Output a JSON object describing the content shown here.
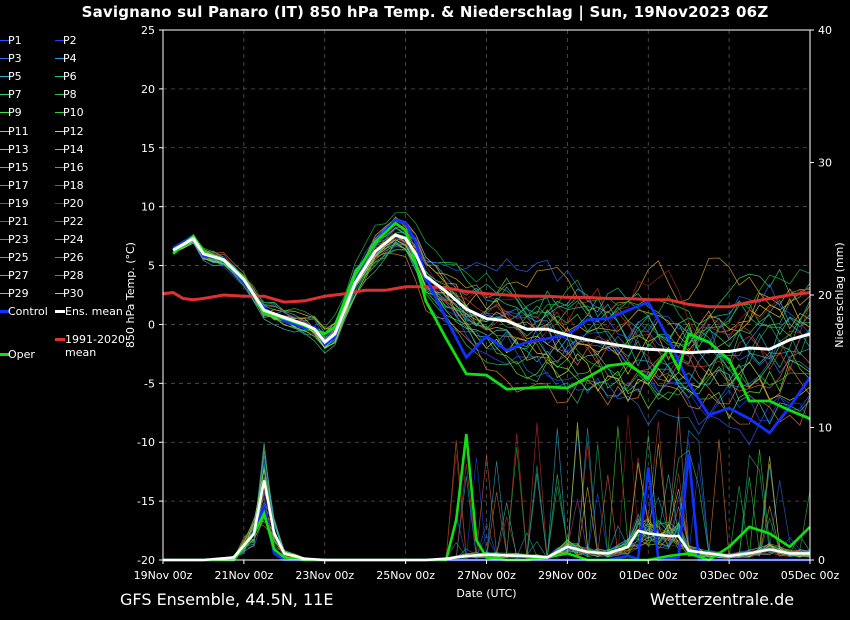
{
  "header": {
    "title": "Savignano sul Panaro  (IT)  850 hPa Temp. & Niederschlag | Sun, 19Nov2023 06Z"
  },
  "footer": {
    "left": "GFS Ensemble, 44.5N, 11E",
    "right": "Wetterzentrale.de"
  },
  "legend": {
    "members": [
      {
        "label": "P1",
        "color": "#3050ff"
      },
      {
        "label": "P2",
        "color": "#2040ff"
      },
      {
        "label": "P3",
        "color": "#3070e0"
      },
      {
        "label": "P4",
        "color": "#20a0e0"
      },
      {
        "label": "P5",
        "color": "#30b0d0"
      },
      {
        "label": "P6",
        "color": "#20c090"
      },
      {
        "label": "P7",
        "color": "#30d070"
      },
      {
        "label": "P8",
        "color": "#30c050"
      },
      {
        "label": "P9",
        "color": "#40e040"
      },
      {
        "label": "P10",
        "color": "#30d030"
      },
      {
        "label": "P11",
        "color": "#d0c030"
      },
      {
        "label": "P12",
        "color": "#e0c040"
      },
      {
        "label": "P13",
        "color": "#e0b030"
      },
      {
        "label": "P14",
        "color": "#d0a030"
      },
      {
        "label": "P15",
        "color": "#e08040"
      },
      {
        "label": "P16",
        "color": "#d07030"
      },
      {
        "label": "P17",
        "color": "#e06040"
      },
      {
        "label": "P18",
        "color": "#c04030"
      },
      {
        "label": "P19",
        "color": "#d03030"
      },
      {
        "label": "P20",
        "color": "#a02020"
      },
      {
        "label": "P21",
        "color": "#3060f0"
      },
      {
        "label": "P22",
        "color": "#2070d0"
      },
      {
        "label": "P23",
        "color": "#30a0c0"
      },
      {
        "label": "P24",
        "color": "#40c0c0"
      },
      {
        "label": "P25",
        "color": "#30c080"
      },
      {
        "label": "P26",
        "color": "#20b060"
      },
      {
        "label": "P27",
        "color": "#30d060"
      },
      {
        "label": "P28",
        "color": "#20b040"
      },
      {
        "label": "P29",
        "color": "#60e040"
      },
      {
        "label": "P30",
        "color": "#d0d040"
      }
    ],
    "control_label": "Control",
    "ens_mean_label": "Ens. mean",
    "clim_label": "1991-2020 mean",
    "oper_label": "Oper"
  },
  "chart_data": {
    "type": "line",
    "title": "Savignano sul Panaro  (IT)  850 hPa Temp. & Niederschlag | Sun, 19Nov2023 06Z",
    "xlabel": "Date (UTC)",
    "ylabel": "850 hPa Temp. (°C)",
    "y2label": "Niederschlag (mm)",
    "ylim": [
      -20,
      25
    ],
    "y2lim": [
      0,
      40
    ],
    "yticks": [
      -20,
      -15,
      -10,
      -5,
      0,
      5,
      10,
      15,
      20,
      25
    ],
    "y2ticks": [
      0,
      10,
      20,
      30,
      40
    ],
    "xlim_days": [
      0,
      16
    ],
    "xticks": [
      {
        "label": "19Nov 00z",
        "day": 0
      },
      {
        "label": "21Nov 00z",
        "day": 2
      },
      {
        "label": "23Nov 00z",
        "day": 4
      },
      {
        "label": "25Nov 00z",
        "day": 6
      },
      {
        "label": "27Nov 00z",
        "day": 8
      },
      {
        "label": "29Nov 00z",
        "day": 10
      },
      {
        "label": "01Dec 00z",
        "day": 12
      },
      {
        "label": "03Dec 00z",
        "day": 14
      },
      {
        "label": "05Dec 00z",
        "day": 16
      }
    ],
    "grid": true,
    "legend_position": "left",
    "member_count": 30,
    "member_spread": [
      {
        "day": 0,
        "sd": 0.4
      },
      {
        "day": 2,
        "sd": 0.8
      },
      {
        "day": 4,
        "sd": 1.0
      },
      {
        "day": 6,
        "sd": 1.2
      },
      {
        "day": 7,
        "sd": 1.8
      },
      {
        "day": 8,
        "sd": 2.6
      },
      {
        "day": 10,
        "sd": 3.2
      },
      {
        "day": 12,
        "sd": 3.6
      },
      {
        "day": 16,
        "sd": 4.0
      }
    ],
    "ens_mean": [
      {
        "day": 0.25,
        "t": 6.3
      },
      {
        "day": 0.75,
        "t": 7.3
      },
      {
        "day": 1.0,
        "t": 6.0
      },
      {
        "day": 1.5,
        "t": 5.5
      },
      {
        "day": 2.0,
        "t": 3.8
      },
      {
        "day": 2.5,
        "t": 1.2
      },
      {
        "day": 3.0,
        "t": 0.6
      },
      {
        "day": 3.5,
        "t": 0.0
      },
      {
        "day": 3.75,
        "t": -0.4
      },
      {
        "day": 4.0,
        "t": -1.5
      },
      {
        "day": 4.25,
        "t": -0.8
      },
      {
        "day": 4.75,
        "t": 3.5
      },
      {
        "day": 5.25,
        "t": 6.2
      },
      {
        "day": 5.75,
        "t": 7.6
      },
      {
        "day": 6.0,
        "t": 7.3
      },
      {
        "day": 6.25,
        "t": 6.0
      },
      {
        "day": 6.5,
        "t": 4.1
      },
      {
        "day": 7.0,
        "t": 2.8
      },
      {
        "day": 7.5,
        "t": 1.3
      },
      {
        "day": 8.0,
        "t": 0.5
      },
      {
        "day": 8.5,
        "t": 0.3
      },
      {
        "day": 9.0,
        "t": -0.4
      },
      {
        "day": 9.5,
        "t": -0.4
      },
      {
        "day": 10.0,
        "t": -0.9
      },
      {
        "day": 10.5,
        "t": -1.3
      },
      {
        "day": 11.0,
        "t": -1.6
      },
      {
        "day": 11.5,
        "t": -1.9
      },
      {
        "day": 12.0,
        "t": -2.1
      },
      {
        "day": 12.5,
        "t": -2.2
      },
      {
        "day": 13.0,
        "t": -2.4
      },
      {
        "day": 13.5,
        "t": -2.3
      },
      {
        "day": 14.0,
        "t": -2.3
      },
      {
        "day": 14.5,
        "t": -2.0
      },
      {
        "day": 15.0,
        "t": -2.1
      },
      {
        "day": 15.5,
        "t": -1.3
      },
      {
        "day": 16.0,
        "t": -0.8
      }
    ],
    "control": [
      {
        "day": 0.25,
        "t": 6.5
      },
      {
        "day": 0.75,
        "t": 7.5
      },
      {
        "day": 1.0,
        "t": 5.8
      },
      {
        "day": 1.5,
        "t": 5.6
      },
      {
        "day": 2.0,
        "t": 3.6
      },
      {
        "day": 2.5,
        "t": 1.4
      },
      {
        "day": 3.0,
        "t": 0.3
      },
      {
        "day": 3.5,
        "t": -0.3
      },
      {
        "day": 3.75,
        "t": -0.2
      },
      {
        "day": 4.0,
        "t": -1.7
      },
      {
        "day": 4.25,
        "t": -1.0
      },
      {
        "day": 4.75,
        "t": 4.0
      },
      {
        "day": 5.25,
        "t": 7.0
      },
      {
        "day": 5.75,
        "t": 8.9
      },
      {
        "day": 6.0,
        "t": 8.6
      },
      {
        "day": 6.25,
        "t": 7.0
      },
      {
        "day": 6.5,
        "t": 4.0
      },
      {
        "day": 7.0,
        "t": 0.5
      },
      {
        "day": 7.5,
        "t": -2.8
      },
      {
        "day": 8.0,
        "t": -1.0
      },
      {
        "day": 8.5,
        "t": -2.2
      },
      {
        "day": 9.0,
        "t": -1.5
      },
      {
        "day": 9.5,
        "t": -1.2
      },
      {
        "day": 10.0,
        "t": -0.9
      },
      {
        "day": 10.5,
        "t": 0.4
      },
      {
        "day": 11.0,
        "t": 0.5
      },
      {
        "day": 11.5,
        "t": 1.2
      },
      {
        "day": 12.0,
        "t": 1.9
      },
      {
        "day": 12.5,
        "t": -1.2
      },
      {
        "day": 13.0,
        "t": -5.0
      },
      {
        "day": 13.5,
        "t": -7.7
      },
      {
        "day": 14.0,
        "t": -7.1
      },
      {
        "day": 14.5,
        "t": -8.0
      },
      {
        "day": 15.0,
        "t": -9.2
      },
      {
        "day": 15.5,
        "t": -7.0
      },
      {
        "day": 16.0,
        "t": -4.5
      }
    ],
    "oper": [
      {
        "day": 0.25,
        "t": 6.0
      },
      {
        "day": 0.75,
        "t": 7.5
      },
      {
        "day": 1.0,
        "t": 6.2
      },
      {
        "day": 1.5,
        "t": 5.5
      },
      {
        "day": 2.0,
        "t": 4.0
      },
      {
        "day": 2.5,
        "t": 1.0
      },
      {
        "day": 3.0,
        "t": 0.5
      },
      {
        "day": 3.5,
        "t": -0.1
      },
      {
        "day": 3.75,
        "t": -0.5
      },
      {
        "day": 4.0,
        "t": -0.8
      },
      {
        "day": 4.25,
        "t": -0.2
      },
      {
        "day": 4.75,
        "t": 4.2
      },
      {
        "day": 5.25,
        "t": 7.0
      },
      {
        "day": 5.75,
        "t": 8.6
      },
      {
        "day": 6.0,
        "t": 8.0
      },
      {
        "day": 6.25,
        "t": 5.2
      },
      {
        "day": 6.5,
        "t": 2.0
      },
      {
        "day": 7.0,
        "t": -1.2
      },
      {
        "day": 7.5,
        "t": -4.2
      },
      {
        "day": 8.0,
        "t": -4.3
      },
      {
        "day": 8.5,
        "t": -5.5
      },
      {
        "day": 9.0,
        "t": -5.4
      },
      {
        "day": 9.5,
        "t": -5.3
      },
      {
        "day": 10.0,
        "t": -5.4
      },
      {
        "day": 10.5,
        "t": -4.5
      },
      {
        "day": 11.0,
        "t": -3.5
      },
      {
        "day": 11.5,
        "t": -3.3
      },
      {
        "day": 12.0,
        "t": -4.6
      },
      {
        "day": 12.25,
        "t": -3.3
      },
      {
        "day": 12.5,
        "t": -2.1
      },
      {
        "day": 12.75,
        "t": -3.8
      },
      {
        "day": 13.0,
        "t": -0.8
      },
      {
        "day": 13.5,
        "t": -1.5
      },
      {
        "day": 14.0,
        "t": -3.0
      },
      {
        "day": 14.5,
        "t": -6.5
      },
      {
        "day": 15.0,
        "t": -6.5
      },
      {
        "day": 15.5,
        "t": -7.3
      },
      {
        "day": 16.0,
        "t": -8.0
      }
    ],
    "clim_mean": [
      {
        "day": 0.0,
        "t": 2.6
      },
      {
        "day": 0.25,
        "t": 2.7
      },
      {
        "day": 0.5,
        "t": 2.2
      },
      {
        "day": 0.75,
        "t": 2.1
      },
      {
        "day": 1.0,
        "t": 2.2
      },
      {
        "day": 1.5,
        "t": 2.5
      },
      {
        "day": 2.0,
        "t": 2.4
      },
      {
        "day": 2.5,
        "t": 2.4
      },
      {
        "day": 3.0,
        "t": 1.9
      },
      {
        "day": 3.5,
        "t": 2.0
      },
      {
        "day": 4.0,
        "t": 2.4
      },
      {
        "day": 4.5,
        "t": 2.6
      },
      {
        "day": 5.0,
        "t": 2.9
      },
      {
        "day": 5.5,
        "t": 2.9
      },
      {
        "day": 6.0,
        "t": 3.2
      },
      {
        "day": 6.5,
        "t": 3.2
      },
      {
        "day": 7.0,
        "t": 3.1
      },
      {
        "day": 7.5,
        "t": 2.8
      },
      {
        "day": 8.0,
        "t": 2.6
      },
      {
        "day": 8.5,
        "t": 2.5
      },
      {
        "day": 9.0,
        "t": 2.4
      },
      {
        "day": 9.5,
        "t": 2.4
      },
      {
        "day": 10.0,
        "t": 2.3
      },
      {
        "day": 10.5,
        "t": 2.3
      },
      {
        "day": 11.0,
        "t": 2.2
      },
      {
        "day": 11.5,
        "t": 2.2
      },
      {
        "day": 12.0,
        "t": 2.1
      },
      {
        "day": 12.5,
        "t": 2.1
      },
      {
        "day": 13.0,
        "t": 1.7
      },
      {
        "day": 13.5,
        "t": 1.5
      },
      {
        "day": 14.0,
        "t": 1.5
      },
      {
        "day": 14.5,
        "t": 1.9
      },
      {
        "day": 15.0,
        "t": 2.2
      },
      {
        "day": 15.5,
        "t": 2.5
      },
      {
        "day": 16.0,
        "t": 2.7
      }
    ],
    "precip_mean": [
      {
        "day": 0.0,
        "mm": 0
      },
      {
        "day": 1.0,
        "mm": 0
      },
      {
        "day": 1.75,
        "mm": 0.2
      },
      {
        "day": 2.25,
        "mm": 2
      },
      {
        "day": 2.5,
        "mm": 6
      },
      {
        "day": 2.75,
        "mm": 2
      },
      {
        "day": 3.0,
        "mm": 0.5
      },
      {
        "day": 3.5,
        "mm": 0.1
      },
      {
        "day": 4.0,
        "mm": 0
      },
      {
        "day": 6.5,
        "mm": 0
      },
      {
        "day": 7.0,
        "mm": 0.1
      },
      {
        "day": 7.5,
        "mm": 0.3
      },
      {
        "day": 8.0,
        "mm": 0.4
      },
      {
        "day": 9.0,
        "mm": 0.3
      },
      {
        "day": 9.5,
        "mm": 0.2
      },
      {
        "day": 10.0,
        "mm": 1.0
      },
      {
        "day": 10.5,
        "mm": 0.6
      },
      {
        "day": 11.0,
        "mm": 0.5
      },
      {
        "day": 11.5,
        "mm": 1.0
      },
      {
        "day": 11.75,
        "mm": 2.2
      },
      {
        "day": 12.0,
        "mm": 2.0
      },
      {
        "day": 12.5,
        "mm": 1.8
      },
      {
        "day": 12.75,
        "mm": 1.8
      },
      {
        "day": 13.0,
        "mm": 0.7
      },
      {
        "day": 13.5,
        "mm": 0.5
      },
      {
        "day": 14.0,
        "mm": 0.3
      },
      {
        "day": 14.5,
        "mm": 0.5
      },
      {
        "day": 15.0,
        "mm": 0.8
      },
      {
        "day": 15.5,
        "mm": 0.5
      },
      {
        "day": 16.0,
        "mm": 0.5
      }
    ],
    "precip_control": [
      {
        "day": 0.0,
        "mm": 0
      },
      {
        "day": 1.75,
        "mm": 0
      },
      {
        "day": 2.25,
        "mm": 2
      },
      {
        "day": 2.5,
        "mm": 4
      },
      {
        "day": 2.75,
        "mm": 0.5
      },
      {
        "day": 3.0,
        "mm": 0
      },
      {
        "day": 11.0,
        "mm": 0
      },
      {
        "day": 11.5,
        "mm": 0.3
      },
      {
        "day": 11.75,
        "mm": 0.1
      },
      {
        "day": 12.0,
        "mm": 7
      },
      {
        "day": 12.25,
        "mm": 0
      },
      {
        "day": 12.75,
        "mm": 0.2
      },
      {
        "day": 13.0,
        "mm": 8
      },
      {
        "day": 13.25,
        "mm": 0
      },
      {
        "day": 16.0,
        "mm": 0
      }
    ],
    "precip_oper": [
      {
        "day": 0.0,
        "mm": 0
      },
      {
        "day": 1.75,
        "mm": 0
      },
      {
        "day": 2.25,
        "mm": 2
      },
      {
        "day": 2.5,
        "mm": 3.5
      },
      {
        "day": 2.75,
        "mm": 0.8
      },
      {
        "day": 3.0,
        "mm": 0.2
      },
      {
        "day": 3.5,
        "mm": 0
      },
      {
        "day": 7.0,
        "mm": 0
      },
      {
        "day": 7.25,
        "mm": 3
      },
      {
        "day": 7.5,
        "mm": 9.5
      },
      {
        "day": 7.75,
        "mm": 1.5
      },
      {
        "day": 8.0,
        "mm": 0.2
      },
      {
        "day": 8.5,
        "mm": 0
      },
      {
        "day": 9.0,
        "mm": 0
      },
      {
        "day": 9.5,
        "mm": 0.2
      },
      {
        "day": 10.0,
        "mm": 0.5
      },
      {
        "day": 10.5,
        "mm": 0
      },
      {
        "day": 12.0,
        "mm": 0
      },
      {
        "day": 12.5,
        "mm": 0.3
      },
      {
        "day": 13.0,
        "mm": 0.5
      },
      {
        "day": 13.5,
        "mm": 0
      },
      {
        "day": 14.0,
        "mm": 1.0
      },
      {
        "day": 14.5,
        "mm": 2.5
      },
      {
        "day": 15.0,
        "mm": 2.0
      },
      {
        "day": 15.5,
        "mm": 1.0
      },
      {
        "day": 16.0,
        "mm": 2.5
      }
    ]
  }
}
